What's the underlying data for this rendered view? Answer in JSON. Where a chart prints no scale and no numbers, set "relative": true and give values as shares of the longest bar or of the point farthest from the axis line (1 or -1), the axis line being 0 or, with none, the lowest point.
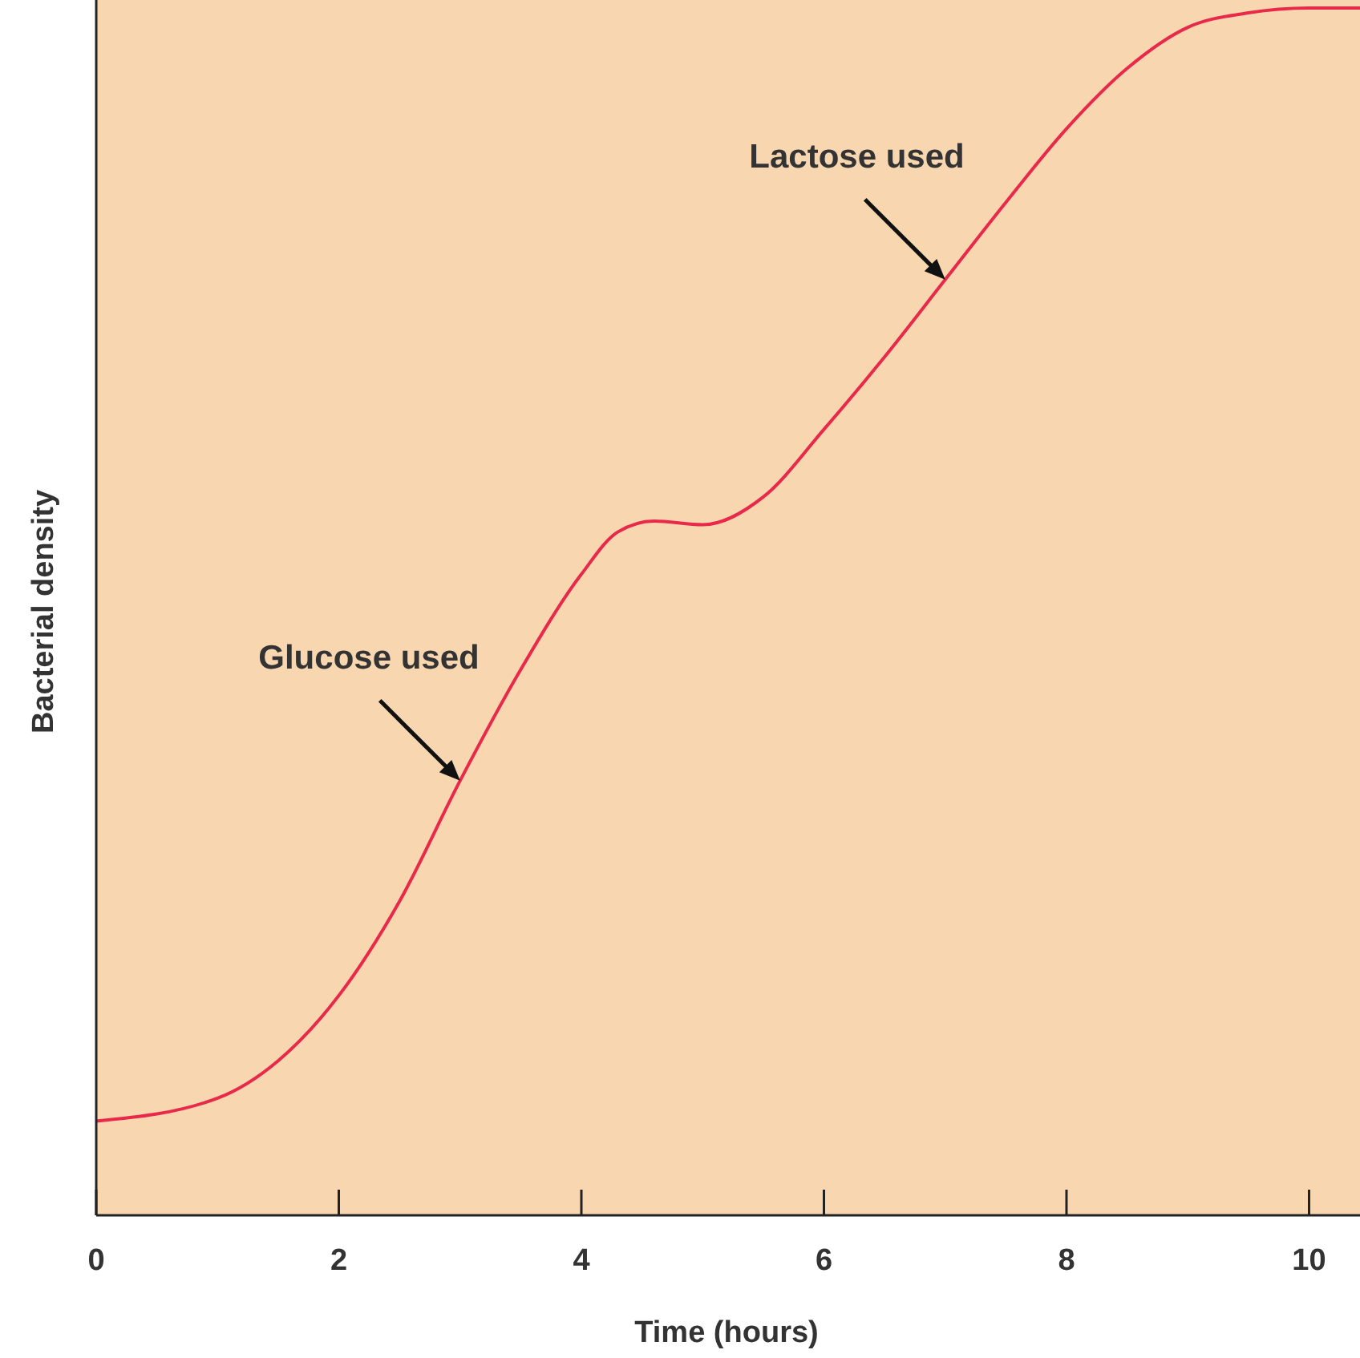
{
  "chart_data": {
    "type": "line",
    "xlabel": "Time (hours)",
    "ylabel": "Bacterial density",
    "relative": true,
    "xlim": [
      0,
      10.42
    ],
    "xticks": [
      0,
      2,
      4,
      6,
      8,
      10
    ],
    "x": [
      0,
      1,
      1.5,
      2,
      2.5,
      3,
      3.5,
      4,
      4.3,
      4.6,
      5,
      5.5,
      6,
      6.5,
      7,
      7.5,
      8,
      8.5,
      9,
      9.5,
      10,
      10.42
    ],
    "series": [
      {
        "color": "#e8294a",
        "values": [
          0.078,
          0.097,
          0.128,
          0.182,
          0.26,
          0.36,
          0.452,
          0.531,
          0.566,
          0.575,
          0.572,
          0.595,
          0.651,
          0.711,
          0.775,
          0.839,
          0.9,
          0.95,
          0.984,
          0.996,
          1.0,
          1.0
        ]
      }
    ],
    "annotations": [
      {
        "text": "Glucose used",
        "x": 3,
        "y": 0.36
      },
      {
        "text": "Lactose used",
        "x": 7,
        "y": 0.775
      }
    ],
    "grid": false,
    "marker": "none",
    "line_style": "solid"
  }
}
